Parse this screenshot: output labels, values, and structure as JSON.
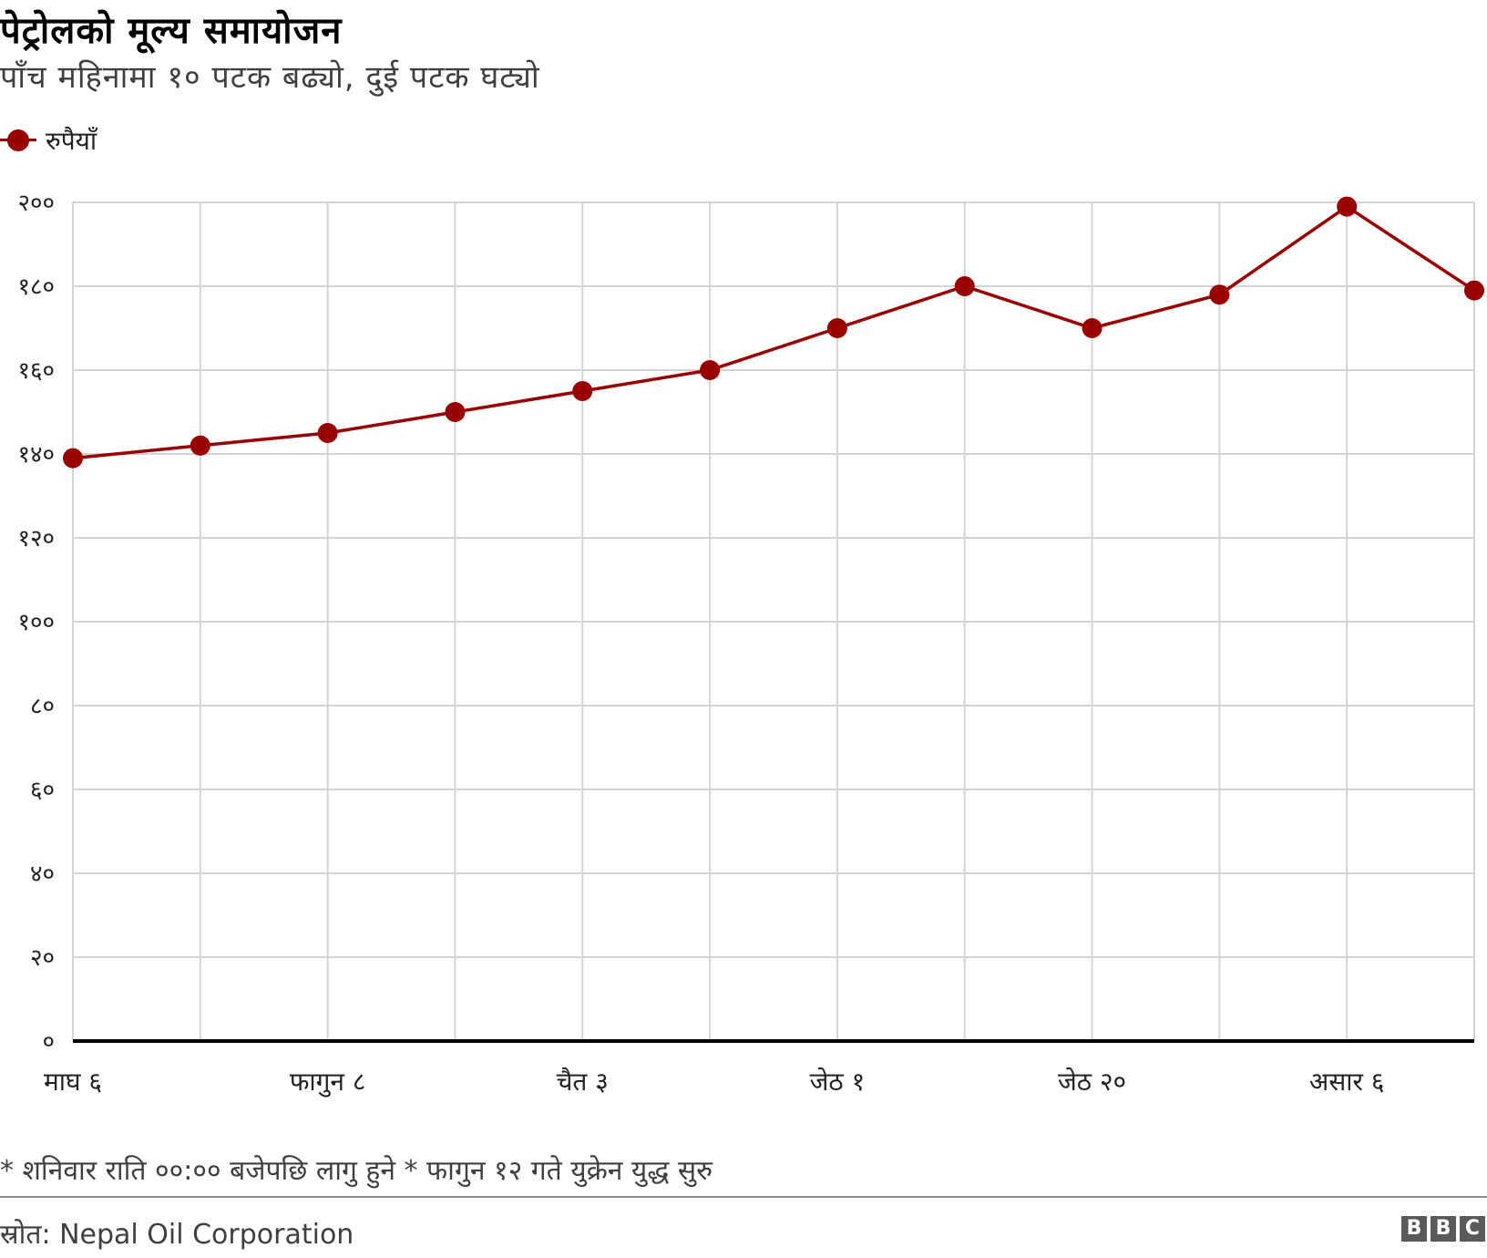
{
  "title": "पेट्रोलको मूल्य समायोजन",
  "subtitle": "पाँच महिनामा १० पटक बढ्यो, दुई पटक घट्यो",
  "note": "* शनिवार राति ००:०० बजेपछि लागु हुने * फागुन १२ गते युक्रेन युद्ध सुरु",
  "source": "स्रोत: Nepal Oil Corporation",
  "logo": [
    "B",
    "B",
    "C"
  ],
  "colors": {
    "series": "#990000",
    "grid": "#d4d4d4",
    "axis": "#000000"
  },
  "chart_data": {
    "type": "line",
    "title": "पेट्रोलको मूल्य समायोजन",
    "subtitle": "पाँच महिनामा १० पटक बढ्यो, दुई पटक घट्यो",
    "xlabel": "",
    "ylabel": "",
    "ylim": [
      0,
      200
    ],
    "yticks": [
      0,
      20,
      40,
      60,
      80,
      100,
      120,
      140,
      160,
      180,
      200
    ],
    "ytick_labels": [
      "०",
      "२०",
      "४०",
      "६०",
      "८०",
      "१००",
      "१२०",
      "१४०",
      "१६०",
      "१८०",
      "२००"
    ],
    "xtick_labels": [
      {
        "index": 0,
        "label": "माघ ६"
      },
      {
        "index": 2,
        "label": "फागुन ८"
      },
      {
        "index": 4,
        "label": "चैत ३"
      },
      {
        "index": 6,
        "label": "जेठ १"
      },
      {
        "index": 8,
        "label": "जेठ २०"
      },
      {
        "index": 10,
        "label": "असार ६"
      }
    ],
    "grid": true,
    "legend": "top-left",
    "series": [
      {
        "name": "रुपैयाँ",
        "values": [
          139,
          142,
          145,
          150,
          155,
          160,
          170,
          180,
          170,
          178,
          199,
          179
        ]
      }
    ]
  }
}
